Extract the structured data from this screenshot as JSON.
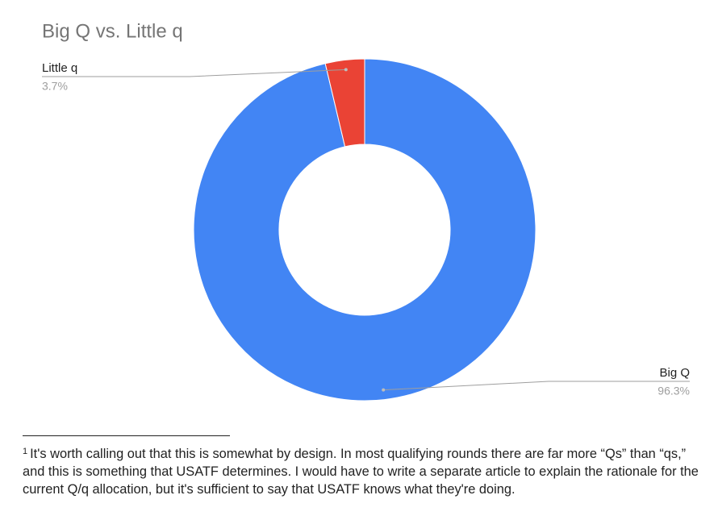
{
  "chart_data": {
    "type": "pie",
    "title": "Big Q vs. Little q",
    "categories": [
      "Big Q",
      "Little q"
    ],
    "values": [
      96.3,
      3.7
    ],
    "value_labels": [
      "96.3%",
      "3.7%"
    ],
    "colors": [
      "#4285f4",
      "#ea4335"
    ],
    "hole": true
  },
  "footnote": {
    "marker": "1",
    "text": "It's worth calling out that this is somewhat by design. In most qualifying rounds there are far more “Qs” than “qs,” and this is something that USATF determines. I would have to write a separate article to explain the rationale for the current Q/q allocation, but it's sufficient to say that USATF knows what they're doing."
  }
}
